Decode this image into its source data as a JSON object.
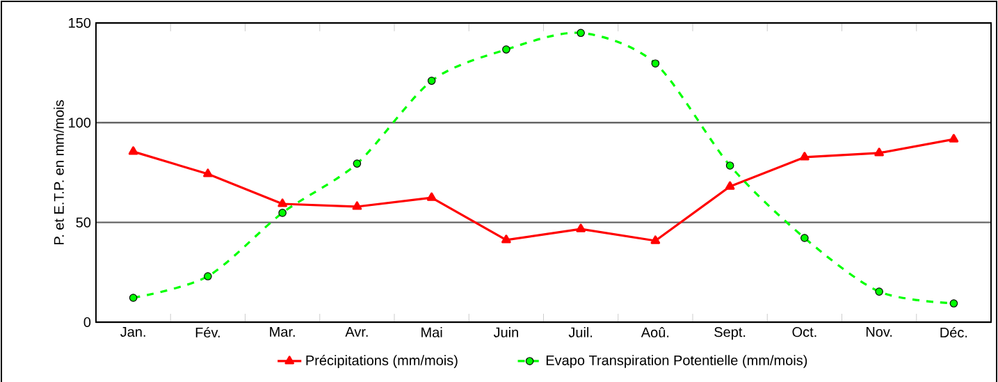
{
  "chart_data": {
    "type": "line",
    "ylabel": "P. et E.T.P. en mm/mois",
    "categories": [
      "Jan.",
      "Fév.",
      "Mar.",
      "Avr.",
      "Mai",
      "Juin",
      "Juil.",
      "Aoû.",
      "Sept.",
      "Oct.",
      "Nov.",
      "Déc."
    ],
    "series": [
      {
        "name": "Précipitations (mm/mois)",
        "color": "#ff0000",
        "marker": "triangle",
        "line_style": "solid",
        "values": [
          85.5,
          74.3,
          59.3,
          57.9,
          62.4,
          41.2,
          46.7,
          40.8,
          68,
          82.7,
          84.8,
          91.7
        ]
      },
      {
        "name": "Evapo Transpiration Potentielle (mm/mois)",
        "color": "#00ff00",
        "marker": "circle",
        "line_style": "dashed",
        "values": [
          12.2,
          23,
          54.8,
          79.5,
          121,
          136.7,
          145,
          129.7,
          78.5,
          42.2,
          15.3,
          9.4
        ]
      }
    ],
    "ylim": [
      0,
      150
    ],
    "yticks": [
      0,
      50,
      100,
      150
    ],
    "grid": "y",
    "legend": "bottom"
  }
}
